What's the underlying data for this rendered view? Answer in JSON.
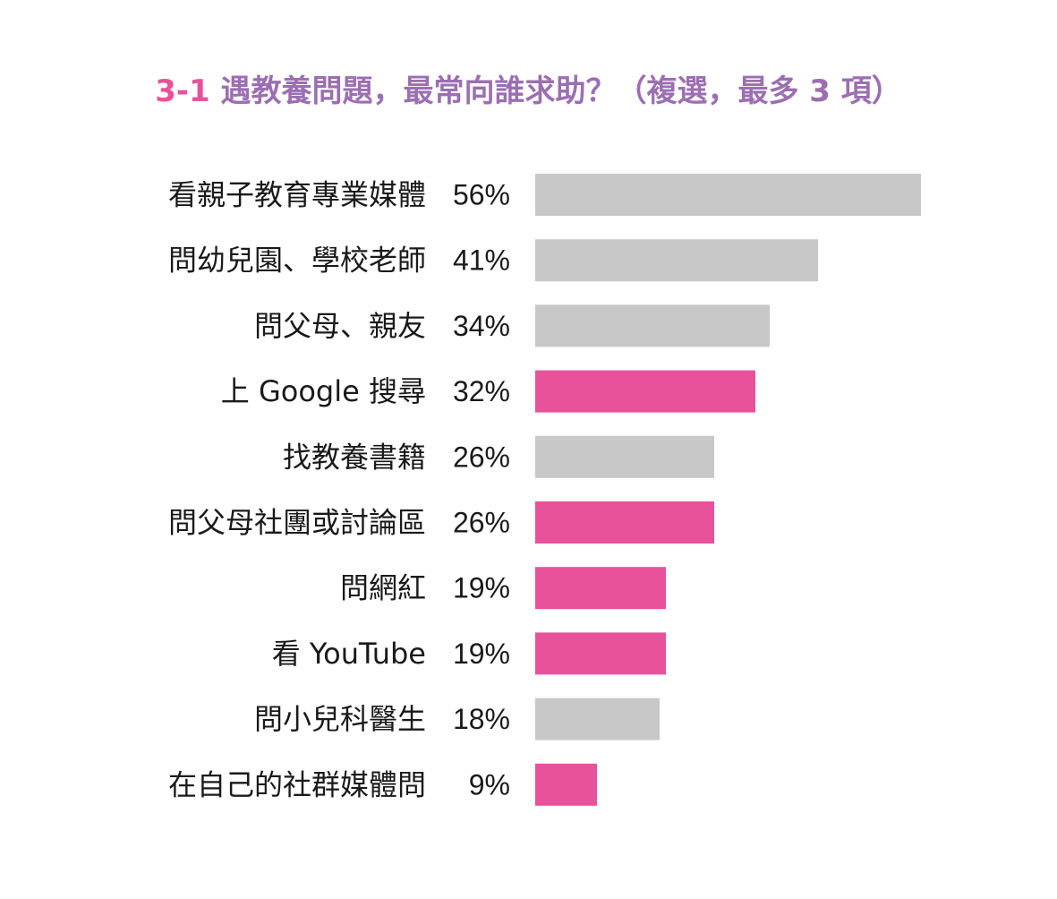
{
  "chart_data": {
    "type": "bar",
    "orientation": "horizontal",
    "title_prefix": "3-1",
    "title": "遇教養問題，最常向誰求助？（複選，最多 3 項）",
    "categories": [
      "看親子教育專業媒體",
      "問幼兒園、學校老師",
      "問父母、親友",
      "上 Google 搜尋",
      "找教養書籍",
      "問父母社團或討論區",
      "問網紅",
      "看 YouTube",
      "問小兒科醫生",
      "在自己的社群媒體問"
    ],
    "values": [
      56,
      41,
      34,
      32,
      26,
      26,
      19,
      19,
      18,
      9
    ],
    "value_labels": [
      "56%",
      "41%",
      "34%",
      "32%",
      "26%",
      "26%",
      "19%",
      "19%",
      "18%",
      "9%"
    ],
    "highlight": [
      false,
      false,
      false,
      true,
      false,
      true,
      true,
      true,
      false,
      true
    ],
    "colors": {
      "default": "#c8c8c8",
      "highlight": "#e8529a",
      "title": "#9b6fb1",
      "title_prefix": "#e8529a"
    },
    "unit": "%",
    "grid": false,
    "legend": "none"
  }
}
